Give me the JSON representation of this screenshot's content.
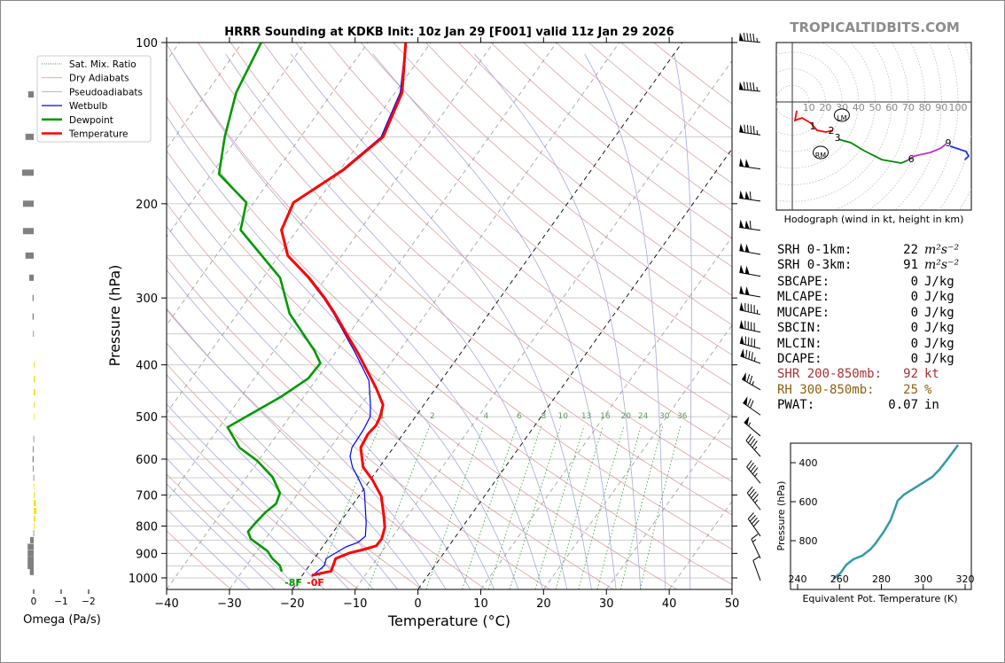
{
  "header": {
    "title": "HRRR Sounding at KDKB Init: 10z Jan 29 [F001] valid 11z Jan 29 2026",
    "brand": "TROPICALTIDBITS.COM"
  },
  "chart_data": [
    {
      "type": "line",
      "name": "skew-t",
      "xlabel": "Temperature (°C)",
      "ylabel": "Pressure (hPa)",
      "xlim": [
        -40,
        50
      ],
      "ylim": [
        1050,
        100
      ],
      "y_scale": "log",
      "x_ticks": [
        "−40",
        "−30",
        "−20",
        "−10",
        "0",
        "10",
        "20",
        "30",
        "40",
        "50"
      ],
      "y_ticks": [
        "100",
        "200",
        "300",
        "400",
        "500",
        "600",
        "700",
        "800",
        "900",
        "1000"
      ],
      "legend": {
        "placement": "upper-left",
        "entries": [
          {
            "label": "Sat. Mix. Ratio",
            "color": "#2ca02c",
            "style": "dotted"
          },
          {
            "label": "Dry Adiabats",
            "color": "#d9a3a3",
            "style": "solid"
          },
          {
            "label": "Pseudoadiabats",
            "color": "#a9a9d9",
            "style": "solid"
          },
          {
            "label": "Wetbulb",
            "color": "#0000ff",
            "style": "solid"
          },
          {
            "label": "Dewpoint",
            "color": "#009900",
            "style": "thick"
          },
          {
            "label": "Temperature",
            "color": "#ff0000",
            "style": "thick"
          }
        ]
      },
      "mixing_ratio_labels": [
        "1",
        "2",
        "4",
        "6",
        "8",
        "10",
        "13",
        "16",
        "20",
        "24",
        "30",
        "36"
      ],
      "surface_labels": {
        "dewpoint": "-8F",
        "temperature": "-0F"
      },
      "series": [
        {
          "name": "Temperature",
          "color": "#ff0000",
          "points": [
            [
              100,
              -64
            ],
            [
              124,
              -58.9
            ],
            [
              150,
              -56.9
            ],
            [
              173,
              -59.5
            ],
            [
              199,
              -63.7
            ],
            [
              224,
              -62.5
            ],
            [
              250,
              -58.6
            ],
            [
              275,
              -52.7
            ],
            [
              300,
              -47.9
            ],
            [
              321,
              -44.5
            ],
            [
              352,
              -40.1
            ],
            [
              380,
              -36.4
            ],
            [
              442,
              -29.5
            ],
            [
              475,
              -26.5
            ],
            [
              500,
              -25.6
            ],
            [
              519,
              -25.3
            ],
            [
              539,
              -25.6
            ],
            [
              571,
              -25.2
            ],
            [
              621,
              -22.6
            ],
            [
              657,
              -19.6
            ],
            [
              704,
              -16.4
            ],
            [
              760,
              -14.0
            ],
            [
              805,
              -12.3
            ],
            [
              846,
              -11.5
            ],
            [
              871,
              -11.6
            ],
            [
              885,
              -13.2
            ],
            [
              899,
              -15.1
            ],
            [
              920,
              -16.6
            ],
            [
              971,
              -15.9
            ],
            [
              989,
              -18.5
            ]
          ]
        },
        {
          "name": "Dewpoint",
          "color": "#009900",
          "points": [
            [
              100,
              -87
            ],
            [
              124,
              -85.3
            ],
            [
              150,
              -82.1
            ],
            [
              176,
              -78.8
            ],
            [
              199,
              -71.2
            ],
            [
              224,
              -69
            ],
            [
              275,
              -57.3
            ],
            [
              321,
              -51.7
            ],
            [
              376,
              -43.6
            ],
            [
              397,
              -41.2
            ],
            [
              424,
              -41.4
            ],
            [
              458,
              -43.6
            ],
            [
              523,
              -48.7
            ],
            [
              571,
              -44.5
            ],
            [
              604,
              -40.2
            ],
            [
              648,
              -35.9
            ],
            [
              694,
              -32.9
            ],
            [
              727,
              -32.3
            ],
            [
              754,
              -33
            ],
            [
              789,
              -33.4
            ],
            [
              820,
              -33.6
            ],
            [
              846,
              -32.3
            ],
            [
              891,
              -28.3
            ],
            [
              920,
              -26.7
            ],
            [
              948,
              -24.7
            ],
            [
              973,
              -23.7
            ]
          ]
        },
        {
          "name": "Wetbulb",
          "color": "#0000ff",
          "points": [
            [
              100,
              -64
            ],
            [
              124,
              -59.2
            ],
            [
              150,
              -57.2
            ],
            [
              173,
              -59.7
            ],
            [
              199,
              -63.8
            ],
            [
              224,
              -62.6
            ],
            [
              250,
              -58.7
            ],
            [
              275,
              -52.9
            ],
            [
              300,
              -48.1
            ],
            [
              321,
              -44.7
            ],
            [
              352,
              -40.4
            ],
            [
              380,
              -36.8
            ],
            [
              428,
              -31.5
            ],
            [
              475,
              -28.5
            ],
            [
              500,
              -27.2
            ],
            [
              529,
              -26.8
            ],
            [
              571,
              -26.6
            ],
            [
              593,
              -25.9
            ],
            [
              621,
              -24.3
            ],
            [
              653,
              -22
            ],
            [
              688,
              -19.7
            ],
            [
              789,
              -15.8
            ],
            [
              836,
              -14.4
            ],
            [
              859,
              -14.9
            ],
            [
              875,
              -16.3
            ],
            [
              920,
              -18.1
            ],
            [
              948,
              -17.6
            ],
            [
              993,
              -18.4
            ]
          ]
        }
      ],
      "wind_barbs": [
        {
          "p": 98,
          "kt": 95,
          "dir": 275
        },
        {
          "p": 121,
          "kt": 95,
          "dir": 275
        },
        {
          "p": 146,
          "kt": 95,
          "dir": 278
        },
        {
          "p": 169,
          "kt": 100,
          "dir": 278
        },
        {
          "p": 194,
          "kt": 110,
          "dir": 278
        },
        {
          "p": 220,
          "kt": 110,
          "dir": 278
        },
        {
          "p": 244,
          "kt": 100,
          "dir": 280
        },
        {
          "p": 268,
          "kt": 100,
          "dir": 280
        },
        {
          "p": 293,
          "kt": 100,
          "dir": 280
        },
        {
          "p": 316,
          "kt": 95,
          "dir": 282
        },
        {
          "p": 341,
          "kt": 90,
          "dir": 282
        },
        {
          "p": 366,
          "kt": 90,
          "dir": 285
        },
        {
          "p": 390,
          "kt": 85,
          "dir": 290
        },
        {
          "p": 437,
          "kt": 75,
          "dir": 300
        },
        {
          "p": 487,
          "kt": 70,
          "dir": 305
        },
        {
          "p": 533,
          "kt": 55,
          "dir": 310
        },
        {
          "p": 582,
          "kt": 45,
          "dir": 318
        },
        {
          "p": 653,
          "kt": 45,
          "dir": 320
        },
        {
          "p": 732,
          "kt": 45,
          "dir": 322
        },
        {
          "p": 820,
          "kt": 40,
          "dir": 325
        },
        {
          "p": 902,
          "kt": 15,
          "dir": 335
        },
        {
          "p": 992,
          "kt": 10,
          "dir": 340
        }
      ]
    },
    {
      "type": "bar",
      "name": "omega",
      "xlabel": "Omega (Pa/s)",
      "x_ticks": [
        "0",
        "−1",
        "−2"
      ],
      "xlim": [
        0.8,
        -2.2
      ],
      "colors": {
        "positive": "#808080",
        "negative": "#f5e11e"
      },
      "values": [
        [
          125,
          0.2
        ],
        [
          150,
          0.3
        ],
        [
          175,
          0.42
        ],
        [
          200,
          0.39
        ],
        [
          225,
          0.39
        ],
        [
          250,
          0.3
        ],
        [
          275,
          0.16
        ],
        [
          300,
          0.04
        ],
        [
          325,
          0.04
        ],
        [
          350,
          0.02
        ],
        [
          400,
          -0.03
        ],
        [
          425,
          -0.05
        ],
        [
          450,
          -0.06
        ],
        [
          475,
          -0.03
        ],
        [
          500,
          -0.01
        ],
        [
          550,
          0.01
        ],
        [
          575,
          0.03
        ],
        [
          600,
          0.04
        ],
        [
          625,
          0.03
        ],
        [
          650,
          0.01
        ],
        [
          675,
          -0.01
        ],
        [
          700,
          -0.04
        ],
        [
          725,
          -0.08
        ],
        [
          750,
          -0.1
        ],
        [
          775,
          -0.06
        ],
        [
          800,
          -0.03
        ],
        [
          825,
          0.01
        ],
        [
          850,
          0.13
        ],
        [
          875,
          0.22
        ],
        [
          900,
          0.22
        ],
        [
          925,
          0.22
        ],
        [
          950,
          0.22
        ],
        [
          975,
          0.14
        ]
      ]
    },
    {
      "type": "line",
      "name": "hodograph",
      "xlabel": "Hodograph (wind in kt, height in km)",
      "ring_labels": [
        "10",
        "20",
        "30",
        "40",
        "50",
        "60",
        "70",
        "80",
        "90",
        "100"
      ],
      "segments": [
        {
          "color": "#ff0000",
          "points": [
            [
              2.7,
              -5.3
            ],
            [
              1.6,
              -11.2
            ],
            [
              5.9,
              -9.6
            ],
            [
              11.2,
              -12.8
            ],
            [
              15,
              -17.1
            ],
            [
              20.3,
              -18.2
            ],
            [
              24.6,
              -17.1
            ]
          ]
        },
        {
          "color": "#008800",
          "points": [
            [
              27.8,
              -22.5
            ],
            [
              35.3,
              -24.6
            ],
            [
              43.3,
              -29.4
            ],
            [
              54,
              -34.8
            ],
            [
              65.8,
              -36.9
            ],
            [
              69.5,
              -35.3
            ]
          ]
        },
        {
          "color": "#bb33cc",
          "points": [
            [
              69.5,
              -35.3
            ],
            [
              73.8,
              -32.6
            ],
            [
              83.4,
              -30.5
            ],
            [
              89.8,
              -27.8
            ],
            [
              93,
              -25.1
            ]
          ]
        },
        {
          "color": "#2233ee",
          "points": [
            [
              95.2,
              -26.7
            ],
            [
              104.8,
              -29.9
            ],
            [
              106.4,
              -32.6
            ],
            [
              104,
              -35
            ]
          ]
        }
      ],
      "height_labels": [
        {
          "text": "1",
          "u": 12.3,
          "v": -14.4
        },
        {
          "text": "2",
          "u": 23.5,
          "v": -17.1
        },
        {
          "text": "3",
          "u": 27.3,
          "v": -21.4
        },
        {
          "text": "6",
          "u": 71.7,
          "v": -34.2
        },
        {
          "text": "9",
          "u": 94.1,
          "v": -24.6
        }
      ],
      "storm_motion": [
        {
          "text": "LM",
          "u": 29.9,
          "v": -8
        },
        {
          "text": "RM",
          "u": 17.1,
          "v": -30.5
        }
      ]
    },
    {
      "type": "line",
      "name": "theta-e",
      "xlabel": "Equivalent Pot. Temperature (K)",
      "ylabel": "Pressure (hPa)",
      "xlim": [
        237,
        322
      ],
      "ylim": [
        1050,
        300
      ],
      "x_ticks": [
        "240",
        "260",
        "280",
        "300",
        "320"
      ],
      "y_ticks": [
        "400",
        "600",
        "800"
      ],
      "color": "#3399aa",
      "points": [
        [
          995,
          257
        ],
        [
          968,
          260.3
        ],
        [
          923,
          263.3
        ],
        [
          895,
          266.7
        ],
        [
          877,
          270.9
        ],
        [
          845,
          274.7
        ],
        [
          814,
          277.2
        ],
        [
          755,
          281.1
        ],
        [
          695,
          284.4
        ],
        [
          632,
          286.6
        ],
        [
          595,
          287.8
        ],
        [
          564,
          290.8
        ],
        [
          527,
          296.3
        ],
        [
          473,
          304.3
        ],
        [
          436,
          307.7
        ],
        [
          377,
          312
        ],
        [
          309,
          316.6
        ]
      ]
    }
  ],
  "indices": [
    {
      "label": "SRH 0-1km:",
      "value": "22",
      "unit": "m²s⁻²",
      "color": "#000000"
    },
    {
      "label": "SRH 0-3km:",
      "value": "91",
      "unit": "m²s⁻²",
      "color": "#000000"
    },
    {
      "label": "SBCAPE:",
      "value": "0",
      "unit": "J/kg",
      "color": "#000000"
    },
    {
      "label": "MLCAPE:",
      "value": "0",
      "unit": "J/kg",
      "color": "#000000"
    },
    {
      "label": "MUCAPE:",
      "value": "0",
      "unit": "J/kg",
      "color": "#000000"
    },
    {
      "label": "SBCIN:",
      "value": "0",
      "unit": "J/kg",
      "color": "#000000"
    },
    {
      "label": "MLCIN:",
      "value": "0",
      "unit": "J/kg",
      "color": "#000000"
    },
    {
      "label": "DCAPE:",
      "value": "0",
      "unit": "J/kg",
      "color": "#000000"
    },
    {
      "label": "SHR 200-850mb:",
      "value": "92",
      "unit": "kt",
      "color": "#a83232"
    },
    {
      "label": "RH 300-850mb:",
      "value": "25",
      "unit": "%",
      "color": "#8f6010"
    },
    {
      "label": "PWAT:",
      "value": "0.07",
      "unit": "in",
      "color": "#000000"
    }
  ]
}
